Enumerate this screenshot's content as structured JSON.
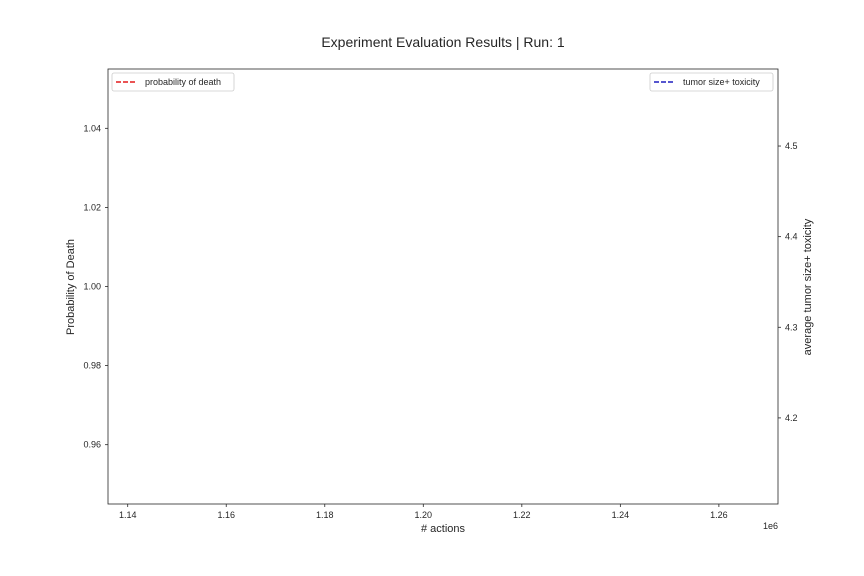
{
  "chart_data": {
    "type": "line",
    "title": "Experiment Evaluation Results | Run: 1",
    "xlabel": "# actions",
    "x_offset_label": "1e6",
    "xlim": [
      1.136,
      1.272
    ],
    "x_ticks": [
      1.14,
      1.16,
      1.18,
      1.2,
      1.22,
      1.24,
      1.26
    ],
    "x_tick_labels": [
      "1.14",
      "1.16",
      "1.18",
      "1.20",
      "1.22",
      "1.24",
      "1.26"
    ],
    "y_left": {
      "label": "Probability of Death",
      "lim": [
        0.945,
        1.055
      ],
      "ticks": [
        0.96,
        0.98,
        1.0,
        1.02,
        1.04
      ],
      "tick_labels": [
        "0.96",
        "0.98",
        "1.00",
        "1.02",
        "1.04"
      ]
    },
    "y_right": {
      "label": "average tumor size+ toxicity",
      "lim": [
        4.105,
        4.585
      ],
      "ticks": [
        4.2,
        4.3,
        4.4,
        4.5
      ],
      "tick_labels": [
        "4.2",
        "4.3",
        "4.4",
        "4.5"
      ]
    },
    "series": [
      {
        "name": "probability of death",
        "axis": "left",
        "color": "#e41a1c",
        "style": "dashed",
        "x": [],
        "values": [],
        "legend": "upper left"
      },
      {
        "name": "tumor size+ toxicity",
        "axis": "right",
        "color": "#1f1fbf",
        "style": "dashed",
        "x": [],
        "values": [],
        "legend": "upper right"
      }
    ],
    "grid": false
  }
}
